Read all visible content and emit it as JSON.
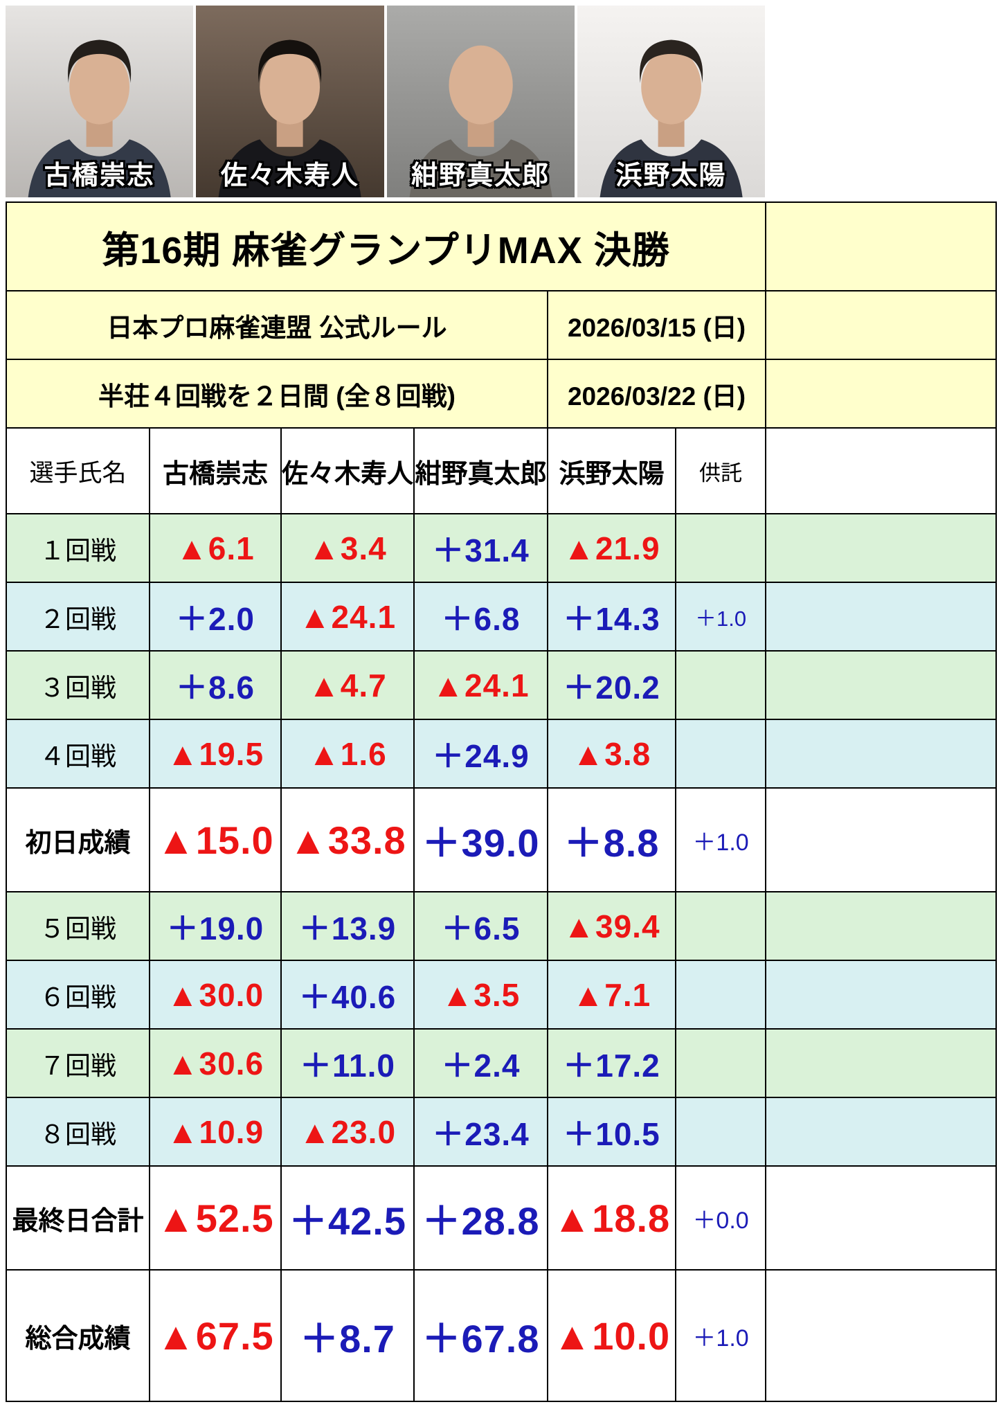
{
  "title": "第16期 麻雀グランプリMAX 決勝",
  "players": [
    {
      "name": "古橋崇志"
    },
    {
      "name": "佐々木寿人"
    },
    {
      "name": "紺野真太郎"
    },
    {
      "name": "浜野太陽"
    }
  ],
  "schedule": {
    "rule_label": "日本プロ麻雀連盟 公式ルール",
    "day1_date": "2026/03/15 (日)",
    "format_label": "半荘４回戦を２日間 (全８回戦)",
    "day2_date": "2026/03/22 (日)"
  },
  "table": {
    "columns": [
      "選手氏名",
      "古橋崇志",
      "佐々木寿人",
      "紺野真太郎",
      "浜野太陽",
      "供託"
    ],
    "rows": [
      {
        "label": "１回戦",
        "style": "green",
        "values": [
          "▲6.1",
          "▲3.4",
          "＋31.4",
          "▲21.9",
          ""
        ]
      },
      {
        "label": "２回戦",
        "style": "cyan",
        "values": [
          "＋2.0",
          "▲24.1",
          "＋6.8",
          "＋14.3",
          "＋1.0"
        ]
      },
      {
        "label": "３回戦",
        "style": "green",
        "values": [
          "＋8.6",
          "▲4.7",
          "▲24.1",
          "＋20.2",
          ""
        ]
      },
      {
        "label": "４回戦",
        "style": "cyan",
        "values": [
          "▲19.5",
          "▲1.6",
          "＋24.9",
          "▲3.8",
          ""
        ]
      },
      {
        "label": "初日成績",
        "style": "summary",
        "values": [
          "▲15.0",
          "▲33.8",
          "＋39.0",
          "＋8.8",
          "＋1.0"
        ]
      },
      {
        "label": "５回戦",
        "style": "green",
        "values": [
          "＋19.0",
          "＋13.9",
          "＋6.5",
          "▲39.4",
          ""
        ]
      },
      {
        "label": "６回戦",
        "style": "cyan",
        "values": [
          "▲30.0",
          "＋40.6",
          "▲3.5",
          "▲7.1",
          ""
        ]
      },
      {
        "label": "７回戦",
        "style": "green",
        "values": [
          "▲30.6",
          "＋11.0",
          "＋2.4",
          "＋17.2",
          ""
        ]
      },
      {
        "label": "８回戦",
        "style": "cyan",
        "values": [
          "▲10.9",
          "▲23.0",
          "＋23.4",
          "＋10.5",
          ""
        ]
      },
      {
        "label": "最終日合計",
        "style": "summary",
        "values": [
          "▲52.5",
          "＋42.5",
          "＋28.8",
          "▲18.8",
          "＋0.0"
        ]
      },
      {
        "label": "総合成績",
        "style": "summary",
        "values": [
          "▲67.5",
          "＋8.7",
          "＋67.8",
          "▲10.0",
          "＋1.0"
        ]
      }
    ]
  },
  "colors": {
    "positive": "#1b1bb7",
    "negative": "#ed1515",
    "header_bg": "#ffffcc",
    "green_row_bg": "#daf2d8",
    "cyan_row_bg": "#d8f0f2"
  }
}
